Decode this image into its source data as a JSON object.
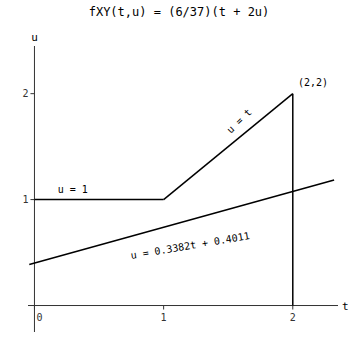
{
  "chart_data": {
    "type": "line",
    "title": "fXY(t,u) = (6/37)(t + 2u)",
    "xlabel": "t",
    "ylabel": "u",
    "xlim": [
      -0.05,
      2.35
    ],
    "ylim": [
      -0.25,
      2.45
    ],
    "xticks": [
      0,
      1,
      2
    ],
    "yticks": [
      1,
      2
    ],
    "grid": false,
    "color": "black",
    "series": [
      {
        "x": [
          -0.04,
          2.32
        ],
        "values": [
          0.387572,
          1.185724
        ]
      },
      {
        "x": [
          0,
          1
        ],
        "values": [
          1,
          1
        ]
      },
      {
        "x": [
          1,
          2
        ],
        "values": [
          1,
          2
        ]
      },
      {
        "x": [
          2,
          2
        ],
        "values": [
          2,
          0
        ]
      }
    ],
    "annotations": [
      {
        "text": "u = 1",
        "x": 0.18,
        "y": 1.06
      },
      {
        "text": "u = t",
        "x": 1.52,
        "y": 1.62
      },
      {
        "text": "u = 0.3382t + 0.4011",
        "x": 0.75,
        "y": 0.44
      },
      {
        "text": "(2,2)",
        "x": 2.04,
        "y": 2.07
      }
    ]
  }
}
